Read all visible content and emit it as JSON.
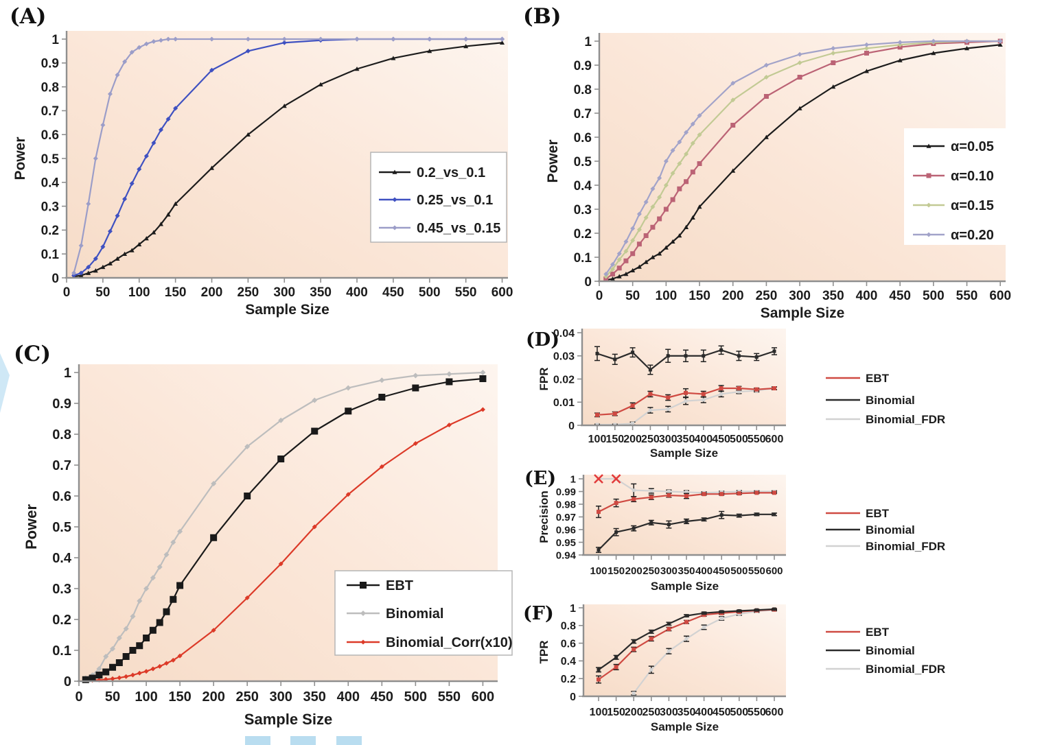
{
  "figure": {
    "background": "#ffffff",
    "plot_bg_gradient": [
      "#f6dcc8",
      "#fbe7d9",
      "#fdf5ef"
    ],
    "axis_color": "#8f8f8f",
    "text_color": "#1c1c1c"
  },
  "decorations": {
    "left_wedge_color": "#cfe8f6",
    "highlight_box_color": "#b9ddf0",
    "highlight_box_count": 3
  },
  "chart_data": [
    {
      "id": "A",
      "panel_label": "(A)",
      "type": "line",
      "xlabel": "Sample Size",
      "ylabel": "Power",
      "xlim": [
        0,
        608
      ],
      "ylim": [
        0,
        1
      ],
      "grid": false,
      "legend_position": "inside-right",
      "xticks": [
        0,
        50,
        100,
        150,
        200,
        250,
        300,
        350,
        400,
        450,
        500,
        550,
        600
      ],
      "xtick_labels": [
        "0",
        "50",
        "100",
        "150",
        "200",
        "250",
        "300",
        "350",
        "400",
        "450",
        "500",
        "550",
        "600"
      ],
      "yticks": [
        0,
        0.1,
        0.2,
        0.3,
        0.4,
        0.5,
        0.6,
        0.7,
        0.8,
        0.9,
        1
      ],
      "ytick_labels": [
        "0",
        "0.1",
        "0.2",
        "0.3",
        "0.4",
        "0.5",
        "0.6",
        "0.7",
        "0.8",
        "0.9",
        "1"
      ],
      "x": [
        10,
        20,
        30,
        40,
        50,
        60,
        70,
        80,
        90,
        100,
        110,
        120,
        130,
        140,
        150,
        200,
        250,
        300,
        350,
        400,
        450,
        500,
        550,
        600
      ],
      "series": [
        {
          "name": "0.2_vs_0.1",
          "color": "#1c1c1c",
          "marker": "triangle",
          "values": [
            0.005,
            0.01,
            0.02,
            0.03,
            0.045,
            0.06,
            0.08,
            0.1,
            0.115,
            0.14,
            0.165,
            0.19,
            0.225,
            0.265,
            0.31,
            0.46,
            0.6,
            0.72,
            0.81,
            0.875,
            0.92,
            0.95,
            0.97,
            0.985
          ]
        },
        {
          "name": "0.25_vs_0.1",
          "color": "#3f51c1",
          "marker": "diamond",
          "values": [
            0.01,
            0.02,
            0.045,
            0.08,
            0.13,
            0.195,
            0.26,
            0.33,
            0.395,
            0.455,
            0.51,
            0.565,
            0.62,
            0.665,
            0.71,
            0.87,
            0.95,
            0.985,
            0.995,
            1,
            1,
            1,
            1,
            1
          ]
        },
        {
          "name": "0.45_vs_0.15",
          "color": "#9b9dc8",
          "marker": "diamond",
          "values": [
            0.02,
            0.135,
            0.31,
            0.5,
            0.64,
            0.77,
            0.85,
            0.905,
            0.945,
            0.965,
            0.98,
            0.99,
            0.995,
            1,
            1,
            1,
            1,
            1,
            1,
            1,
            1,
            1,
            1,
            1
          ]
        }
      ]
    },
    {
      "id": "B",
      "panel_label": "(B)",
      "type": "line",
      "xlabel": "Sample Size",
      "ylabel": "Power",
      "xlim": [
        0,
        608
      ],
      "ylim": [
        0,
        1
      ],
      "grid": false,
      "legend_position": "inside-right",
      "xticks": [
        0,
        50,
        100,
        150,
        200,
        250,
        300,
        350,
        400,
        450,
        500,
        550,
        600
      ],
      "xtick_labels": [
        "0",
        "50",
        "100",
        "150",
        "200",
        "250",
        "300",
        "350",
        "400",
        "450",
        "500",
        "550",
        "600"
      ],
      "yticks": [
        0,
        0.1,
        0.2,
        0.3,
        0.4,
        0.5,
        0.6,
        0.7,
        0.8,
        0.9,
        1
      ],
      "ytick_labels": [
        "0",
        "0.1",
        "0.2",
        "0.3",
        "0.4",
        "0.5",
        "0.6",
        "0.7",
        "0.8",
        "0.9",
        "1"
      ],
      "x": [
        10,
        20,
        30,
        40,
        50,
        60,
        70,
        80,
        90,
        100,
        110,
        120,
        130,
        140,
        150,
        200,
        250,
        300,
        350,
        400,
        450,
        500,
        550,
        600
      ],
      "series": [
        {
          "name": "α=0.05",
          "color": "#1c1c1c",
          "marker": "triangle",
          "values": [
            0.005,
            0.01,
            0.02,
            0.03,
            0.045,
            0.06,
            0.08,
            0.1,
            0.115,
            0.14,
            0.165,
            0.19,
            0.225,
            0.265,
            0.31,
            0.46,
            0.6,
            0.72,
            0.81,
            0.875,
            0.92,
            0.95,
            0.97,
            0.985
          ]
        },
        {
          "name": "α=0.10",
          "color": "#bb6375",
          "marker": "square",
          "values": [
            0.01,
            0.03,
            0.055,
            0.085,
            0.115,
            0.155,
            0.19,
            0.225,
            0.26,
            0.3,
            0.34,
            0.385,
            0.415,
            0.455,
            0.49,
            0.65,
            0.77,
            0.85,
            0.91,
            0.95,
            0.975,
            0.99,
            0.995,
            1
          ]
        },
        {
          "name": "α=0.15",
          "color": "#c2ca94",
          "marker": "diamond",
          "values": [
            0.02,
            0.05,
            0.09,
            0.125,
            0.17,
            0.215,
            0.265,
            0.31,
            0.35,
            0.4,
            0.45,
            0.49,
            0.53,
            0.575,
            0.61,
            0.755,
            0.85,
            0.91,
            0.95,
            0.97,
            0.985,
            0.995,
            1,
            1
          ]
        },
        {
          "name": "α=0.20",
          "color": "#a2a3c9",
          "marker": "diamond",
          "values": [
            0.03,
            0.07,
            0.115,
            0.165,
            0.22,
            0.28,
            0.33,
            0.385,
            0.43,
            0.5,
            0.545,
            0.58,
            0.62,
            0.655,
            0.69,
            0.825,
            0.9,
            0.945,
            0.97,
            0.985,
            0.995,
            1,
            1,
            1
          ]
        }
      ]
    },
    {
      "id": "C",
      "panel_label": "(C)",
      "type": "line",
      "xlabel": "Sample Size",
      "ylabel": "Power",
      "xlim": [
        0,
        622
      ],
      "ylim": [
        0,
        1
      ],
      "grid": false,
      "legend_position": "inside-right-bottom",
      "xticks": [
        0,
        50,
        100,
        150,
        200,
        250,
        300,
        350,
        400,
        450,
        500,
        550,
        600
      ],
      "xtick_labels": [
        "0",
        "50",
        "100",
        "150",
        "200",
        "250",
        "300",
        "350",
        "400",
        "450",
        "500",
        "550",
        "600"
      ],
      "yticks": [
        0,
        0.1,
        0.2,
        0.3,
        0.4,
        0.5,
        0.6,
        0.7,
        0.8,
        0.9,
        1
      ],
      "ytick_labels": [
        "0",
        "0.1",
        "0.2",
        "0.3",
        "0.4",
        "0.5",
        "0.6",
        "0.7",
        "0.8",
        "0.9",
        "1"
      ],
      "x": [
        10,
        20,
        30,
        40,
        50,
        60,
        70,
        80,
        90,
        100,
        110,
        120,
        130,
        140,
        150,
        200,
        250,
        300,
        350,
        400,
        450,
        500,
        550,
        600
      ],
      "series": [
        {
          "name": "EBT",
          "color": "#1a1a1a",
          "marker": "square",
          "marker_size": 5,
          "values": [
            0.005,
            0.01,
            0.02,
            0.03,
            0.045,
            0.06,
            0.08,
            0.1,
            0.115,
            0.14,
            0.165,
            0.19,
            0.225,
            0.265,
            0.31,
            0.465,
            0.6,
            0.72,
            0.81,
            0.875,
            0.92,
            0.95,
            0.97,
            0.98
          ]
        },
        {
          "name": "Binomial",
          "color": "#bdbdbd",
          "marker": "diamond",
          "marker_size": 4,
          "values": [
            0.01,
            0.02,
            0.04,
            0.08,
            0.105,
            0.14,
            0.17,
            0.21,
            0.26,
            0.3,
            0.335,
            0.37,
            0.41,
            0.45,
            0.485,
            0.64,
            0.76,
            0.845,
            0.91,
            0.95,
            0.975,
            0.99,
            0.995,
            1
          ]
        },
        {
          "name": "Binomial_Corr(x10)",
          "color": "#dc3a28",
          "marker": "diamond",
          "marker_size": 3.5,
          "values": [
            0.002,
            0.003,
            0.004,
            0.006,
            0.008,
            0.011,
            0.015,
            0.02,
            0.026,
            0.032,
            0.04,
            0.048,
            0.058,
            0.068,
            0.082,
            0.165,
            0.27,
            0.38,
            0.5,
            0.605,
            0.695,
            0.77,
            0.83,
            0.88
          ]
        }
      ]
    },
    {
      "id": "D",
      "panel_label": "(D)",
      "type": "line",
      "xlabel": "Sample Size",
      "ylabel": "FPR",
      "categorical": true,
      "ylim": [
        0,
        0.04
      ],
      "grid": false,
      "legend_position": "right",
      "x": [
        100,
        150,
        200,
        250,
        300,
        350,
        400,
        450,
        500,
        550,
        600
      ],
      "xtick_labels": [
        "100",
        "150",
        "200",
        "250",
        "300",
        "350",
        "400",
        "450",
        "500",
        "550",
        "600"
      ],
      "yticks": [
        0,
        0.01,
        0.02,
        0.03,
        0.04
      ],
      "ytick_labels": [
        "0",
        "0.01",
        "0.02",
        "0.03",
        "0.04"
      ],
      "series": [
        {
          "name": "EBT",
          "color": "#cf4a42",
          "marker": "square",
          "marker_size": 3,
          "values": [
            0.0045,
            0.005,
            0.0085,
            0.0135,
            0.012,
            0.014,
            0.0135,
            0.016,
            0.016,
            0.0155,
            0.016
          ],
          "errors": [
            0.0008,
            0.0008,
            0.0012,
            0.0012,
            0.0012,
            0.0018,
            0.0012,
            0.0012,
            0.0008,
            0.0006,
            0.0006
          ]
        },
        {
          "name": "Binomial",
          "color": "#2b2b2b",
          "marker": "square",
          "marker_size": 2.5,
          "values": [
            0.031,
            0.0285,
            0.0315,
            0.024,
            0.03,
            0.03,
            0.03,
            0.0325,
            0.03,
            0.0295,
            0.032
          ],
          "errors": [
            0.003,
            0.0022,
            0.002,
            0.002,
            0.0028,
            0.0025,
            0.0025,
            0.0018,
            0.002,
            0.0015,
            0.0015
          ]
        },
        {
          "name": "Binomial_FDR",
          "color": "#d2d2d2",
          "marker": "square",
          "marker_size": 2.5,
          "values": [
            0.0003,
            0.0003,
            0.0008,
            0.0065,
            0.007,
            0.0105,
            0.011,
            0.0135,
            0.0145,
            0.015,
            0.016
          ],
          "errors": [
            0.0002,
            0.0002,
            0.0006,
            0.0012,
            0.0012,
            0.0015,
            0.0012,
            0.0012,
            0.0008,
            0.0006,
            0.0006
          ]
        }
      ]
    },
    {
      "id": "E",
      "panel_label": "(E)",
      "type": "line",
      "xlabel": "Sample Size",
      "ylabel": "Precision",
      "categorical": true,
      "ylim": [
        0.94,
        1
      ],
      "grid": false,
      "legend_position": "right",
      "x": [
        100,
        150,
        200,
        250,
        300,
        350,
        400,
        450,
        500,
        550,
        600
      ],
      "xtick_labels": [
        "100",
        "150",
        "200",
        "250",
        "300",
        "350",
        "400",
        "450",
        "500",
        "550",
        "600"
      ],
      "yticks": [
        0.94,
        0.95,
        0.96,
        0.97,
        0.98,
        0.99,
        1
      ],
      "ytick_labels": [
        "0.94",
        "0.95",
        "0.96",
        "0.97",
        "0.98",
        "0.99",
        "1"
      ],
      "flags": [
        {
          "x": 100,
          "y": 1,
          "marker": "x",
          "color": "#e23b3b"
        },
        {
          "x": 150,
          "y": 1,
          "marker": "x",
          "color": "#e23b3b"
        }
      ],
      "series": [
        {
          "name": "EBT",
          "color": "#cf4a42",
          "marker": "square",
          "marker_size": 3,
          "values": [
            0.974,
            0.981,
            0.984,
            0.9855,
            0.987,
            0.9865,
            0.988,
            0.988,
            0.9885,
            0.989,
            0.989
          ],
          "errors": [
            0.0045,
            0.003,
            0.002,
            0.0018,
            0.0015,
            0.002,
            0.0008,
            0.0008,
            0.0008,
            0.0006,
            0.0006
          ]
        },
        {
          "name": "Binomial",
          "color": "#2b2b2b",
          "marker": "square",
          "marker_size": 2.5,
          "values": [
            0.944,
            0.958,
            0.961,
            0.9655,
            0.964,
            0.9665,
            0.968,
            0.9715,
            0.971,
            0.972,
            0.972
          ],
          "errors": [
            0.002,
            0.0028,
            0.002,
            0.0018,
            0.0028,
            0.0018,
            0.0012,
            0.0028,
            0.0012,
            0.001,
            0.001
          ]
        },
        {
          "name": "Binomial_FDR",
          "color": "#d2d2d2",
          "marker": "square",
          "marker_size": 2.5,
          "values": [
            1,
            1,
            0.991,
            0.9905,
            0.99,
            0.9895,
            0.989,
            0.9895,
            0.99,
            0.99,
            0.99
          ],
          "errors": [
            0,
            0,
            0.005,
            0.0018,
            0.0012,
            0.0012,
            0.0008,
            0.0008,
            0.0008,
            0.0006,
            0.0006
          ]
        }
      ]
    },
    {
      "id": "F",
      "panel_label": "(F)",
      "type": "line",
      "xlabel": "Sample Size",
      "ylabel": "TPR",
      "categorical": true,
      "ylim": [
        0,
        1
      ],
      "grid": false,
      "legend_position": "right",
      "x": [
        100,
        150,
        200,
        250,
        300,
        350,
        400,
        450,
        500,
        550,
        600
      ],
      "xtick_labels": [
        "100",
        "150",
        "200",
        "250",
        "300",
        "350",
        "400",
        "450",
        "500",
        "550",
        "600"
      ],
      "yticks": [
        0,
        0.2,
        0.4,
        0.6,
        0.8,
        1
      ],
      "ytick_labels": [
        "0",
        "0.2",
        "0.4",
        "0.6",
        "0.8",
        "1"
      ],
      "series": [
        {
          "name": "EBT",
          "color": "#cf4a42",
          "marker": "square",
          "marker_size": 3,
          "values": [
            0.19,
            0.33,
            0.53,
            0.65,
            0.76,
            0.84,
            0.92,
            0.94,
            0.955,
            0.97,
            0.98
          ],
          "errors": [
            0.04,
            0.03,
            0.025,
            0.025,
            0.02,
            0.018,
            0.015,
            0.013,
            0.012,
            0.01,
            0.008
          ]
        },
        {
          "name": "Binomial",
          "color": "#2b2b2b",
          "marker": "square",
          "marker_size": 2.5,
          "values": [
            0.3,
            0.44,
            0.62,
            0.73,
            0.82,
            0.91,
            0.94,
            0.955,
            0.965,
            0.975,
            0.985
          ],
          "errors": [
            0.025,
            0.022,
            0.02,
            0.018,
            0.016,
            0.012,
            0.012,
            0.01,
            0.009,
            0.008,
            0.006
          ]
        },
        {
          "name": "Binomial_FDR",
          "color": "#d2d2d2",
          "marker": "square",
          "marker_size": 2.5,
          "values": [
            null,
            null,
            0.035,
            0.3,
            0.51,
            0.65,
            0.78,
            0.88,
            0.93,
            0.96,
            0.975
          ],
          "errors": [
            0,
            0,
            0.02,
            0.04,
            0.03,
            0.03,
            0.025,
            0.02,
            0.015,
            0.012,
            0.01
          ]
        }
      ]
    }
  ]
}
